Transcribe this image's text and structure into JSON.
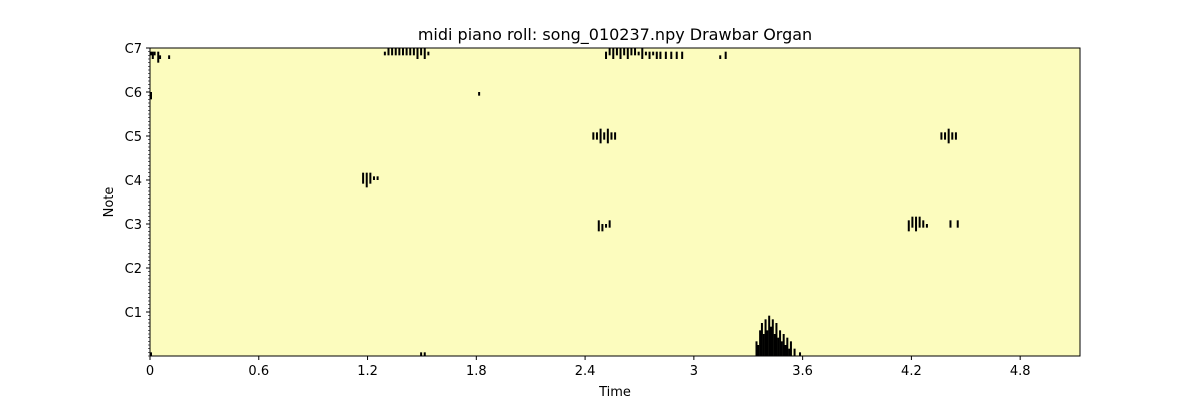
{
  "chart_data": {
    "type": "heatmap",
    "title": "midi piano roll: song_010237.npy Drawbar Organ",
    "xlabel": "Time",
    "ylabel": "Note",
    "xlim": [
      0,
      5.13
    ],
    "ylim": [
      12,
      96
    ],
    "x_ticks": [
      {
        "value": 0,
        "label": "0"
      },
      {
        "value": 0.6,
        "label": "0.6"
      },
      {
        "value": 1.2,
        "label": "1.2"
      },
      {
        "value": 1.8,
        "label": "1.8"
      },
      {
        "value": 2.4,
        "label": "2.4"
      },
      {
        "value": 3.0,
        "label": "3"
      },
      {
        "value": 3.6,
        "label": "3.6"
      },
      {
        "value": 4.2,
        "label": "4.2"
      },
      {
        "value": 4.8,
        "label": "4.8"
      }
    ],
    "y_ticks": [
      {
        "value": 24,
        "label": "C1"
      },
      {
        "value": 36,
        "label": "C2"
      },
      {
        "value": 48,
        "label": "C3"
      },
      {
        "value": 60,
        "label": "C4"
      },
      {
        "value": 72,
        "label": "C5"
      },
      {
        "value": 84,
        "label": "C6"
      },
      {
        "value": 96,
        "label": "C7"
      }
    ],
    "colors": {
      "background": "#fcfcbe",
      "note": "#000000"
    },
    "notes": [
      {
        "t": 0.0,
        "lo": 94,
        "hi": 95
      },
      {
        "t": 0.01,
        "lo": 93,
        "hi": 95
      },
      {
        "t": 0.02,
        "lo": 94,
        "hi": 95
      },
      {
        "t": 0.04,
        "lo": 92,
        "hi": 95
      },
      {
        "t": 0.05,
        "lo": 93,
        "hi": 94
      },
      {
        "t": 0.1,
        "lo": 93,
        "hi": 94
      },
      {
        "t": 0.0,
        "lo": 82,
        "hi": 84
      },
      {
        "t": 0.0,
        "lo": 12,
        "hi": 13
      },
      {
        "t": 1.29,
        "lo": 94,
        "hi": 95
      },
      {
        "t": 1.31,
        "lo": 94,
        "hi": 96
      },
      {
        "t": 1.33,
        "lo": 94,
        "hi": 96
      },
      {
        "t": 1.35,
        "lo": 94,
        "hi": 96
      },
      {
        "t": 1.37,
        "lo": 94,
        "hi": 96
      },
      {
        "t": 1.39,
        "lo": 94,
        "hi": 96
      },
      {
        "t": 1.41,
        "lo": 94,
        "hi": 96
      },
      {
        "t": 1.43,
        "lo": 94,
        "hi": 96
      },
      {
        "t": 1.45,
        "lo": 94,
        "hi": 96
      },
      {
        "t": 1.47,
        "lo": 93,
        "hi": 96
      },
      {
        "t": 1.49,
        "lo": 94,
        "hi": 96
      },
      {
        "t": 1.51,
        "lo": 93,
        "hi": 96
      },
      {
        "t": 1.53,
        "lo": 94,
        "hi": 95
      },
      {
        "t": 1.49,
        "lo": 12,
        "hi": 13
      },
      {
        "t": 1.51,
        "lo": 12,
        "hi": 13
      },
      {
        "t": 1.81,
        "lo": 83,
        "hi": 84
      },
      {
        "t": 1.17,
        "lo": 59,
        "hi": 62
      },
      {
        "t": 1.19,
        "lo": 58,
        "hi": 62
      },
      {
        "t": 1.21,
        "lo": 59,
        "hi": 62
      },
      {
        "t": 1.23,
        "lo": 60,
        "hi": 61
      },
      {
        "t": 1.25,
        "lo": 60,
        "hi": 61
      },
      {
        "t": 2.44,
        "lo": 71,
        "hi": 73
      },
      {
        "t": 2.46,
        "lo": 71,
        "hi": 73
      },
      {
        "t": 2.48,
        "lo": 70,
        "hi": 74
      },
      {
        "t": 2.5,
        "lo": 71,
        "hi": 73
      },
      {
        "t": 2.52,
        "lo": 70,
        "hi": 74
      },
      {
        "t": 2.54,
        "lo": 71,
        "hi": 73
      },
      {
        "t": 2.56,
        "lo": 71,
        "hi": 73
      },
      {
        "t": 2.47,
        "lo": 46,
        "hi": 49
      },
      {
        "t": 2.49,
        "lo": 46,
        "hi": 48
      },
      {
        "t": 2.51,
        "lo": 47,
        "hi": 48
      },
      {
        "t": 2.53,
        "lo": 47,
        "hi": 49
      },
      {
        "t": 2.51,
        "lo": 93,
        "hi": 95
      },
      {
        "t": 2.53,
        "lo": 94,
        "hi": 96
      },
      {
        "t": 2.55,
        "lo": 93,
        "hi": 96
      },
      {
        "t": 2.57,
        "lo": 94,
        "hi": 96
      },
      {
        "t": 2.59,
        "lo": 93,
        "hi": 96
      },
      {
        "t": 2.61,
        "lo": 94,
        "hi": 96
      },
      {
        "t": 2.63,
        "lo": 93,
        "hi": 96
      },
      {
        "t": 2.65,
        "lo": 94,
        "hi": 96
      },
      {
        "t": 2.67,
        "lo": 94,
        "hi": 96
      },
      {
        "t": 2.69,
        "lo": 94,
        "hi": 95
      },
      {
        "t": 2.71,
        "lo": 93,
        "hi": 96
      },
      {
        "t": 2.73,
        "lo": 94,
        "hi": 95
      },
      {
        "t": 2.75,
        "lo": 93,
        "hi": 95
      },
      {
        "t": 2.77,
        "lo": 94,
        "hi": 95
      },
      {
        "t": 2.79,
        "lo": 93,
        "hi": 95
      },
      {
        "t": 2.81,
        "lo": 93,
        "hi": 95
      },
      {
        "t": 2.84,
        "lo": 93,
        "hi": 95
      },
      {
        "t": 2.87,
        "lo": 93,
        "hi": 95
      },
      {
        "t": 2.9,
        "lo": 93,
        "hi": 95
      },
      {
        "t": 2.93,
        "lo": 93,
        "hi": 95
      },
      {
        "t": 3.14,
        "lo": 93,
        "hi": 94
      },
      {
        "t": 3.17,
        "lo": 93,
        "hi": 95
      },
      {
        "t": 3.34,
        "lo": 12,
        "hi": 16
      },
      {
        "t": 3.35,
        "lo": 12,
        "hi": 15
      },
      {
        "t": 3.36,
        "lo": 12,
        "hi": 19
      },
      {
        "t": 3.37,
        "lo": 12,
        "hi": 21
      },
      {
        "t": 3.38,
        "lo": 12,
        "hi": 18
      },
      {
        "t": 3.39,
        "lo": 12,
        "hi": 22
      },
      {
        "t": 3.4,
        "lo": 12,
        "hi": 19
      },
      {
        "t": 3.41,
        "lo": 12,
        "hi": 23
      },
      {
        "t": 3.42,
        "lo": 12,
        "hi": 20
      },
      {
        "t": 3.43,
        "lo": 12,
        "hi": 22
      },
      {
        "t": 3.44,
        "lo": 12,
        "hi": 18
      },
      {
        "t": 3.45,
        "lo": 12,
        "hi": 21
      },
      {
        "t": 3.46,
        "lo": 12,
        "hi": 17
      },
      {
        "t": 3.47,
        "lo": 12,
        "hi": 19
      },
      {
        "t": 3.48,
        "lo": 12,
        "hi": 16
      },
      {
        "t": 3.49,
        "lo": 12,
        "hi": 18
      },
      {
        "t": 3.5,
        "lo": 12,
        "hi": 15
      },
      {
        "t": 3.51,
        "lo": 12,
        "hi": 17
      },
      {
        "t": 3.52,
        "lo": 12,
        "hi": 14
      },
      {
        "t": 3.53,
        "lo": 12,
        "hi": 16
      },
      {
        "t": 3.55,
        "lo": 12,
        "hi": 14
      },
      {
        "t": 3.58,
        "lo": 12,
        "hi": 13
      },
      {
        "t": 4.18,
        "lo": 46,
        "hi": 49
      },
      {
        "t": 4.2,
        "lo": 47,
        "hi": 50
      },
      {
        "t": 4.22,
        "lo": 46,
        "hi": 50
      },
      {
        "t": 4.24,
        "lo": 47,
        "hi": 50
      },
      {
        "t": 4.26,
        "lo": 47,
        "hi": 49
      },
      {
        "t": 4.28,
        "lo": 47,
        "hi": 48
      },
      {
        "t": 4.41,
        "lo": 47,
        "hi": 49
      },
      {
        "t": 4.45,
        "lo": 47,
        "hi": 49
      },
      {
        "t": 4.36,
        "lo": 71,
        "hi": 73
      },
      {
        "t": 4.38,
        "lo": 71,
        "hi": 73
      },
      {
        "t": 4.4,
        "lo": 70,
        "hi": 74
      },
      {
        "t": 4.42,
        "lo": 71,
        "hi": 73
      },
      {
        "t": 4.44,
        "lo": 71,
        "hi": 73
      }
    ]
  }
}
